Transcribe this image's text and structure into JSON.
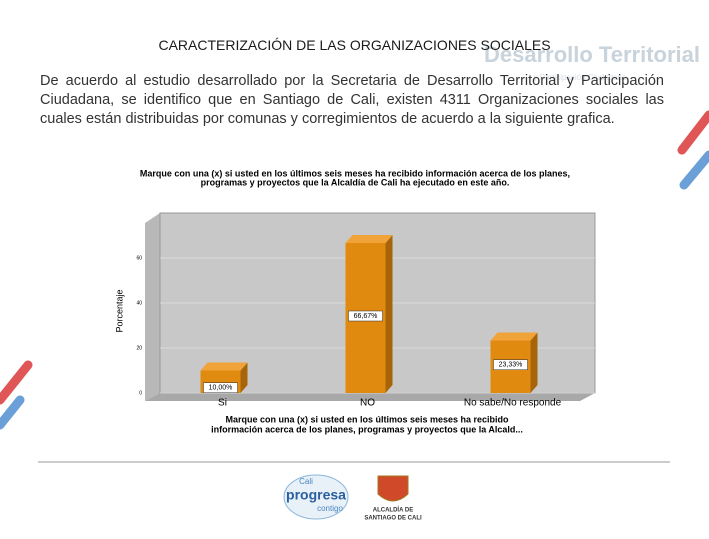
{
  "header": {
    "title": "CARACTERIZACIÓN DE LAS ORGANIZACIONES SOCIALES",
    "watermark": "Desarrollo Territorial",
    "watermark_sub": "y Participación Ciudadana"
  },
  "body": {
    "paragraph": "De acuerdo al estudio desarrollado por la Secretaria de Desarrollo Territorial y Participación Ciudadana, se identifico que en Santiago de Cali, existen 4311 Organizaciones sociales las cuales están distribuidas por comunas y corregimientos de acuerdo a la siguiente grafica."
  },
  "chart_data": {
    "type": "bar",
    "title": [
      "Marque con una (x) si usted en los últimos seis meses ha recibido información acerca de los planes,",
      "programas y proyectos que la Alcaldía de Cali ha ejecutado en este año."
    ],
    "y_label": "Porcentaje",
    "x_label": [
      "Marque con una (x) si usted en los últimos seis meses ha recibido",
      "información acerca de los planes, programas y proyectos que la Alcald..."
    ],
    "categories": [
      "Si",
      "NO",
      "No sabe/No responde"
    ],
    "values": [
      10,
      66.67,
      23.33
    ],
    "value_labels": [
      "10,00%",
      "66,67%",
      "23,33%"
    ],
    "color": "#e08a10",
    "ylim": [
      0,
      80
    ],
    "yticks": [
      0,
      20,
      40,
      60
    ],
    "grid": true
  },
  "footer": {
    "logo_left": [
      "Cali",
      "progresa",
      "contigo"
    ],
    "logo_right": [
      "ALCALDÍA DE",
      "SANTIAGO DE CALI"
    ]
  }
}
